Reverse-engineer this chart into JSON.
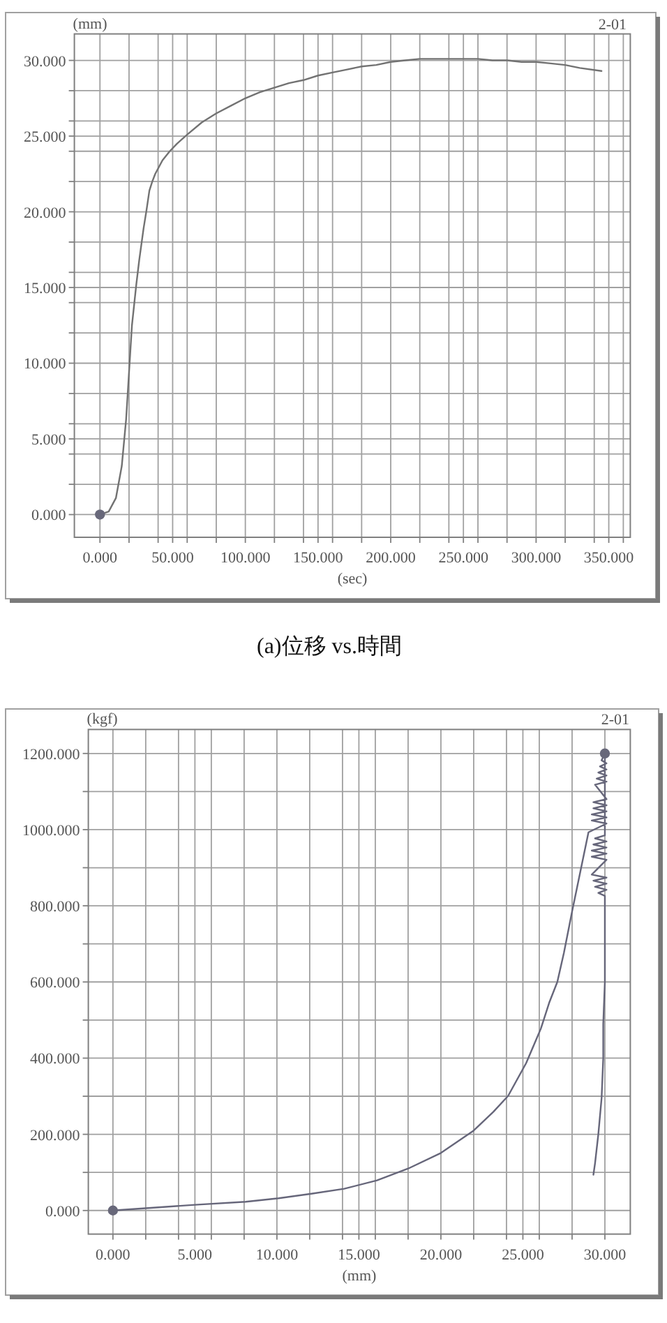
{
  "chart_data": [
    {
      "type": "line",
      "xlabel": "(sec)",
      "ylabel": "(mm)",
      "annotations": [
        "2-01",
        "(a)位移 vs.時間"
      ],
      "xlim": [
        -17.6,
        364.8
      ],
      "ylim": [
        -1.5,
        31.75
      ],
      "grid": true,
      "xticks": [
        {
          "value": 0,
          "label": "0.000"
        },
        {
          "value": 20,
          "label": null
        },
        {
          "value": 40,
          "label": null
        },
        {
          "value": 50,
          "label": "50.000"
        },
        {
          "value": 60,
          "label": null
        },
        {
          "value": 80,
          "label": null
        },
        {
          "value": 100,
          "label": "100.000"
        },
        {
          "value": 120,
          "label": null
        },
        {
          "value": 140,
          "label": null
        },
        {
          "value": 150,
          "label": "150.000"
        },
        {
          "value": 160,
          "label": null
        },
        {
          "value": 180,
          "label": null
        },
        {
          "value": 200,
          "label": "200.000"
        },
        {
          "value": 220,
          "label": null
        },
        {
          "value": 240,
          "label": null
        },
        {
          "value": 250,
          "label": "250.000"
        },
        {
          "value": 260,
          "label": null
        },
        {
          "value": 280,
          "label": null
        },
        {
          "value": 300,
          "label": "300.000"
        },
        {
          "value": 320,
          "label": null
        },
        {
          "value": 340,
          "label": null
        },
        {
          "value": 350,
          "label": "350.000"
        },
        {
          "value": 360,
          "label": null
        }
      ],
      "yticks": [
        {
          "value": 0,
          "label": "0.000"
        },
        {
          "value": 2,
          "label": null
        },
        {
          "value": 4,
          "label": null
        },
        {
          "value": 5,
          "label": "5.000"
        },
        {
          "value": 6,
          "label": null
        },
        {
          "value": 8,
          "label": null
        },
        {
          "value": 10,
          "label": "10.000"
        },
        {
          "value": 12,
          "label": null
        },
        {
          "value": 14,
          "label": null
        },
        {
          "value": 15,
          "label": "15.000"
        },
        {
          "value": 16,
          "label": null
        },
        {
          "value": 18,
          "label": null
        },
        {
          "value": 20,
          "label": "20.000"
        },
        {
          "value": 22,
          "label": null
        },
        {
          "value": 24,
          "label": null
        },
        {
          "value": 25,
          "label": "25.000"
        },
        {
          "value": 26,
          "label": null
        },
        {
          "value": 28,
          "label": null
        },
        {
          "value": 30,
          "label": "30.000"
        }
      ],
      "series": [
        {
          "color": "#727272",
          "x": [
            0,
            6,
            11,
            15,
            18,
            20,
            22,
            25,
            27,
            30,
            32,
            34,
            36,
            38,
            43,
            48,
            53,
            60,
            70,
            80,
            90,
            100,
            110,
            120,
            130,
            140,
            150,
            160,
            170,
            180,
            190,
            200,
            210,
            220,
            230,
            240,
            250,
            260,
            270,
            280,
            290,
            300,
            310,
            320,
            330,
            345
          ],
          "values": [
            0,
            0.2,
            1.1,
            3.2,
            6.3,
            9.4,
            12.5,
            15.2,
            16.8,
            18.9,
            20.1,
            21.4,
            22.0,
            22.5,
            23.4,
            24.0,
            24.5,
            25.1,
            25.9,
            26.5,
            27.0,
            27.5,
            27.9,
            28.2,
            28.5,
            28.7,
            29.0,
            29.2,
            29.4,
            29.6,
            29.7,
            29.9,
            30.0,
            30.1,
            30.1,
            30.1,
            30.1,
            30.1,
            30.0,
            30.0,
            29.9,
            29.9,
            29.8,
            29.7,
            29.5,
            29.3
          ]
        },
        {
          "type": "scatter",
          "color": "#68687a",
          "marker": "circle",
          "x": [
            0
          ],
          "values": [
            0
          ]
        }
      ]
    },
    {
      "type": "line",
      "xlabel": "(mm)",
      "ylabel": "(kgf)",
      "annotations": [
        "2-01"
      ],
      "xlim": [
        -1.5,
        31.55
      ],
      "ylim": [
        -62,
        1263
      ],
      "grid": true,
      "xticks": [
        {
          "value": 0,
          "label": "0.000"
        },
        {
          "value": 2,
          "label": null
        },
        {
          "value": 4,
          "label": null
        },
        {
          "value": 5,
          "label": "5.000"
        },
        {
          "value": 6,
          "label": null
        },
        {
          "value": 8,
          "label": null
        },
        {
          "value": 10,
          "label": "10.000"
        },
        {
          "value": 12,
          "label": null
        },
        {
          "value": 14,
          "label": null
        },
        {
          "value": 15,
          "label": "15.000"
        },
        {
          "value": 16,
          "label": null
        },
        {
          "value": 18,
          "label": null
        },
        {
          "value": 20,
          "label": "20.000"
        },
        {
          "value": 22,
          "label": null
        },
        {
          "value": 24,
          "label": null
        },
        {
          "value": 25,
          "label": "25.000"
        },
        {
          "value": 26,
          "label": null
        },
        {
          "value": 28,
          "label": null
        },
        {
          "value": 30,
          "label": "30.000"
        }
      ],
      "yticks": [
        {
          "value": 0,
          "label": "0.000"
        },
        {
          "value": 100,
          "label": null
        },
        {
          "value": 200,
          "label": "200.000"
        },
        {
          "value": 300,
          "label": null
        },
        {
          "value": 400,
          "label": "400.000"
        },
        {
          "value": 500,
          "label": null
        },
        {
          "value": 600,
          "label": "600.000"
        },
        {
          "value": 700,
          "label": null
        },
        {
          "value": 800,
          "label": "800.000"
        },
        {
          "value": 900,
          "label": null
        },
        {
          "value": 1000,
          "label": "1000.000"
        },
        {
          "value": 1100,
          "label": null
        },
        {
          "value": 1200,
          "label": "1200.000"
        }
      ],
      "series": [
        {
          "color": "#66667a",
          "x": [
            0,
            2,
            5,
            8.1,
            10.1,
            12.1,
            14.1,
            16.1,
            18,
            20,
            22,
            23.2,
            24.1,
            25.2,
            26.1,
            26.6,
            27.1,
            27.5,
            28.0,
            28.5,
            29.0,
            30.1,
            29.2,
            30.1,
            29.2,
            30.1,
            29.3,
            30.1,
            29.3,
            30.1,
            29.4,
            30.1,
            29.5,
            30.1,
            29.6,
            30.1,
            29.7,
            30.1,
            29.8,
            30.0,
            30.0,
            29.4,
            30.1,
            29.3,
            30.1,
            29.2,
            30.1,
            29.2,
            30.1,
            29.2,
            30.1,
            29.3,
            30.1,
            29.4,
            30.1,
            29.6,
            30.0,
            30.0,
            29.9,
            29.9,
            29.8,
            29.6,
            29.4,
            29.3
          ],
          "values": [
            0,
            6,
            15,
            23,
            32,
            44,
            57,
            79,
            110,
            151,
            210,
            259,
            301,
            387,
            478,
            545,
            600,
            676,
            785,
            889,
            993,
            1016,
            1024,
            1032,
            1040,
            1048,
            1056,
            1064,
            1072,
            1080,
            1118,
            1126,
            1134,
            1142,
            1150,
            1158,
            1166,
            1174,
            1182,
            1200,
            985,
            977,
            969,
            961,
            953,
            945,
            937,
            929,
            921,
            882,
            874,
            866,
            858,
            850,
            842,
            834,
            826,
            600,
            490,
            400,
            295,
            200,
            124,
            94
          ]
        },
        {
          "type": "scatter",
          "color": "#68687a",
          "marker": "circle",
          "x": [
            0,
            30.0
          ],
          "values": [
            0,
            1200
          ]
        }
      ]
    }
  ]
}
